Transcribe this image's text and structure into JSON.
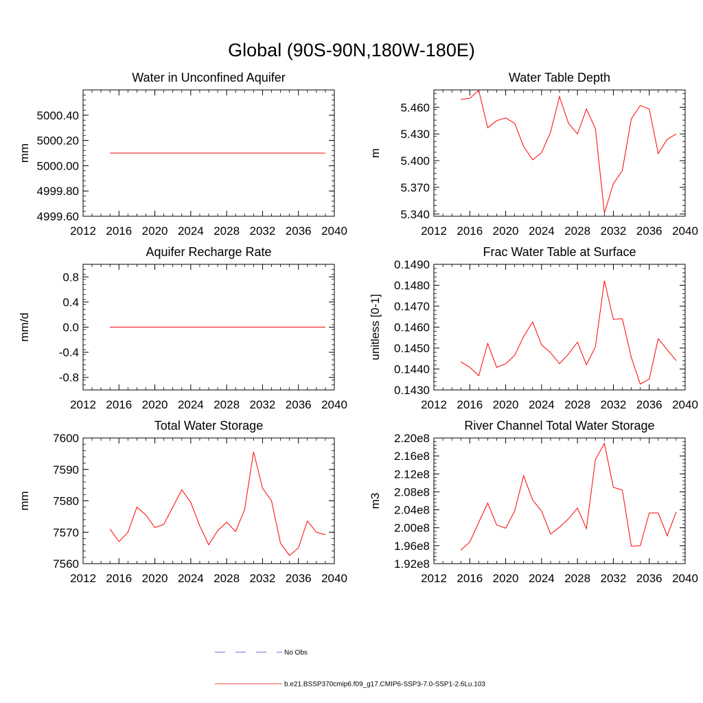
{
  "figure": {
    "title": "Global (90S-90N,180W-180E)",
    "legend": [
      {
        "label": "No Obs",
        "color": "#3a3ab8",
        "style": "dashed"
      },
      {
        "label": "b.e21.BSSP370cmip6.f09_g17.CMIP6-SSP3-7.0-SSP1-2.6Lu.103",
        "color": "#ff0000",
        "style": "solid"
      }
    ]
  },
  "chart_data": [
    {
      "type": "line",
      "title": "Water in Unconfined Aquifer",
      "ylabel": "mm",
      "xlim": [
        2012,
        2040
      ],
      "xticks": [
        2012,
        2016,
        2020,
        2024,
        2028,
        2032,
        2036,
        2040
      ],
      "xtick_labels": [
        "2012",
        "2016",
        "2020",
        "2024",
        "2028",
        "2032",
        "2036",
        "2040"
      ],
      "ylim": [
        4999.6,
        5000.6
      ],
      "yticks": [
        4999.6,
        4999.8,
        5000.0,
        5000.2,
        5000.4
      ],
      "ytick_labels": [
        "4999.60",
        "4999.80",
        "5000.00",
        "5000.20",
        "5000.40"
      ],
      "yminor": 0.04,
      "series": [
        {
          "name": "b.e21.BSSP370cmip6.f09_g17.CMIP6-SSP3-7.0-SSP1-2.6Lu.103",
          "color": "#ff0000",
          "x": [
            2015,
            2016,
            2017,
            2018,
            2019,
            2020,
            2021,
            2022,
            2023,
            2024,
            2025,
            2026,
            2027,
            2028,
            2029,
            2030,
            2031,
            2032,
            2033,
            2034,
            2035,
            2036,
            2037,
            2038,
            2039
          ],
          "y": [
            5000.1,
            5000.1,
            5000.1,
            5000.1,
            5000.1,
            5000.1,
            5000.1,
            5000.1,
            5000.1,
            5000.1,
            5000.1,
            5000.1,
            5000.1,
            5000.1,
            5000.1,
            5000.1,
            5000.1,
            5000.1,
            5000.1,
            5000.1,
            5000.1,
            5000.1,
            5000.1,
            5000.1,
            5000.1
          ]
        }
      ]
    },
    {
      "type": "line",
      "title": "Water Table Depth",
      "ylabel": "m",
      "xlim": [
        2012,
        2040
      ],
      "xticks": [
        2012,
        2016,
        2020,
        2024,
        2028,
        2032,
        2036,
        2040
      ],
      "xtick_labels": [
        "2012",
        "2016",
        "2020",
        "2024",
        "2028",
        "2032",
        "2036",
        "2040"
      ],
      "ylim": [
        5.3375,
        5.4795
      ],
      "yticks": [
        5.34,
        5.37,
        5.4,
        5.43,
        5.46
      ],
      "ytick_labels": [
        "5.340",
        "5.370",
        "5.400",
        "5.430",
        "5.460"
      ],
      "yminor": 0.006,
      "series": [
        {
          "name": "b.e21.BSSP370cmip6.f09_g17.CMIP6-SSP3-7.0-SSP1-2.6Lu.103",
          "color": "#ff0000",
          "x": [
            2015,
            2016,
            2017,
            2018,
            2019,
            2020,
            2021,
            2022,
            2023,
            2024,
            2025,
            2026,
            2027,
            2028,
            2029,
            2030,
            2031,
            2032,
            2033,
            2034,
            2035,
            2036,
            2037,
            2038,
            2039
          ],
          "y": [
            5.469,
            5.47,
            5.479,
            5.437,
            5.445,
            5.448,
            5.442,
            5.416,
            5.401,
            5.409,
            5.432,
            5.472,
            5.442,
            5.43,
            5.458,
            5.436,
            5.341,
            5.374,
            5.389,
            5.447,
            5.462,
            5.458,
            5.408,
            5.424,
            5.43
          ]
        }
      ]
    },
    {
      "type": "line",
      "title": "Aquifer Recharge Rate",
      "ylabel": "mm/d",
      "xlim": [
        2012,
        2040
      ],
      "xticks": [
        2012,
        2016,
        2020,
        2024,
        2028,
        2032,
        2036,
        2040
      ],
      "xtick_labels": [
        "2012",
        "2016",
        "2020",
        "2024",
        "2028",
        "2032",
        "2036",
        "2040"
      ],
      "ylim": [
        -1.0,
        1.0
      ],
      "yticks": [
        -0.8,
        -0.4,
        0.0,
        0.4,
        0.8
      ],
      "ytick_labels": [
        "-0.8",
        "-0.4",
        "0.0",
        "0.4",
        "0.8"
      ],
      "yminor": 0.08,
      "series": [
        {
          "name": "b.e21.BSSP370cmip6.f09_g17.CMIP6-SSP3-7.0-SSP1-2.6Lu.103",
          "color": "#ff0000",
          "x": [
            2015,
            2016,
            2017,
            2018,
            2019,
            2020,
            2021,
            2022,
            2023,
            2024,
            2025,
            2026,
            2027,
            2028,
            2029,
            2030,
            2031,
            2032,
            2033,
            2034,
            2035,
            2036,
            2037,
            2038,
            2039
          ],
          "y": [
            0,
            0,
            0,
            0,
            0,
            0,
            0,
            0,
            0,
            0,
            0,
            0,
            0,
            0,
            0,
            0,
            0,
            0,
            0,
            0,
            0,
            0,
            0,
            0,
            0
          ]
        }
      ]
    },
    {
      "type": "line",
      "title": "Frac Water Table at Surface",
      "ylabel": "unitless [0-1]",
      "xlim": [
        2012,
        2040
      ],
      "xticks": [
        2012,
        2016,
        2020,
        2024,
        2028,
        2032,
        2036,
        2040
      ],
      "xtick_labels": [
        "2012",
        "2016",
        "2020",
        "2024",
        "2028",
        "2032",
        "2036",
        "2040"
      ],
      "ylim": [
        0.143,
        0.149
      ],
      "yticks": [
        0.143,
        0.144,
        0.145,
        0.146,
        0.147,
        0.148,
        0.149
      ],
      "ytick_labels": [
        "0.1430",
        "0.1440",
        "0.1450",
        "0.1460",
        "0.1470",
        "0.1480",
        "0.1490"
      ],
      "yminor": 0.0002,
      "series": [
        {
          "name": "b.e21.BSSP370cmip6.f09_g17.CMIP6-SSP3-7.0-SSP1-2.6Lu.103",
          "color": "#ff0000",
          "x": [
            2015,
            2016,
            2017,
            2018,
            2019,
            2020,
            2021,
            2022,
            2023,
            2024,
            2025,
            2026,
            2027,
            2028,
            2029,
            2030,
            2031,
            2032,
            2033,
            2034,
            2035,
            2036,
            2037,
            2038,
            2039
          ],
          "y": [
            0.14435,
            0.14408,
            0.14368,
            0.14522,
            0.14408,
            0.14425,
            0.14465,
            0.14555,
            0.14625,
            0.14515,
            0.14478,
            0.14425,
            0.14472,
            0.14528,
            0.1442,
            0.14506,
            0.14822,
            0.14637,
            0.1464,
            0.14455,
            0.14328,
            0.14352,
            0.14545,
            0.14492,
            0.1444
          ]
        }
      ]
    },
    {
      "type": "line",
      "title": "Total Water Storage",
      "ylabel": "mm",
      "xlim": [
        2012,
        2040
      ],
      "xticks": [
        2012,
        2016,
        2020,
        2024,
        2028,
        2032,
        2036,
        2040
      ],
      "xtick_labels": [
        "2012",
        "2016",
        "2020",
        "2024",
        "2028",
        "2032",
        "2036",
        "2040"
      ],
      "ylim": [
        7560,
        7600
      ],
      "yticks": [
        7560,
        7570,
        7580,
        7590,
        7600
      ],
      "ytick_labels": [
        "7560",
        "7570",
        "7580",
        "7590",
        "7600"
      ],
      "yminor": 2,
      "series": [
        {
          "name": "b.e21.BSSP370cmip6.f09_g17.CMIP6-SSP3-7.0-SSP1-2.6Lu.103",
          "color": "#ff0000",
          "x": [
            2015,
            2016,
            2017,
            2018,
            2019,
            2020,
            2021,
            2022,
            2023,
            2024,
            2025,
            2026,
            2027,
            2028,
            2029,
            2030,
            2031,
            2032,
            2033,
            2034,
            2035,
            2036,
            2037,
            2038,
            2039
          ],
          "y": [
            7571.0,
            7567.0,
            7570.0,
            7578.0,
            7575.5,
            7571.5,
            7572.5,
            7578.0,
            7583.5,
            7579.5,
            7572.0,
            7566.0,
            7570.5,
            7573.2,
            7570.2,
            7577.2,
            7595.6,
            7584.0,
            7580.0,
            7566.5,
            7562.6,
            7565.0,
            7573.6,
            7570.0,
            7569.2
          ]
        }
      ]
    },
    {
      "type": "line",
      "title": "River Channel Total Water Storage",
      "ylabel": "m3",
      "xlim": [
        2012,
        2040
      ],
      "xticks": [
        2012,
        2016,
        2020,
        2024,
        2028,
        2032,
        2036,
        2040
      ],
      "xtick_labels": [
        "2012",
        "2016",
        "2020",
        "2024",
        "2028",
        "2032",
        "2036",
        "2040"
      ],
      "ylim": [
        192000000,
        220000000
      ],
      "yticks": [
        192000000,
        196000000,
        200000000,
        204000000,
        208000000,
        212000000,
        216000000,
        220000000
      ],
      "ytick_labels": [
        "1.92e8",
        "1.96e8",
        "2.00e8",
        "2.04e8",
        "2.08e8",
        "2.12e8",
        "2.16e8",
        "2.20e8"
      ],
      "yminor": 800000,
      "series": [
        {
          "name": "b.e21.BSSP370cmip6.f09_g17.CMIP6-SSP3-7.0-SSP1-2.6Lu.103",
          "color": "#ff0000",
          "x": [
            2015,
            2016,
            2017,
            2018,
            2019,
            2020,
            2021,
            2022,
            2023,
            2024,
            2025,
            2026,
            2027,
            2028,
            2029,
            2030,
            2031,
            2032,
            2033,
            2034,
            2035,
            2036,
            2037,
            2038,
            2039
          ],
          "y": [
            195000000,
            196800000,
            201200000,
            205500000,
            200600000,
            199900000,
            203700000,
            211600000,
            206200000,
            203700000,
            198600000,
            200100000,
            202000000,
            204400000,
            199800000,
            215200000,
            218800000,
            209000000,
            208400000,
            195900000,
            196000000,
            203300000,
            203300000,
            198200000,
            203500000
          ]
        }
      ]
    }
  ]
}
